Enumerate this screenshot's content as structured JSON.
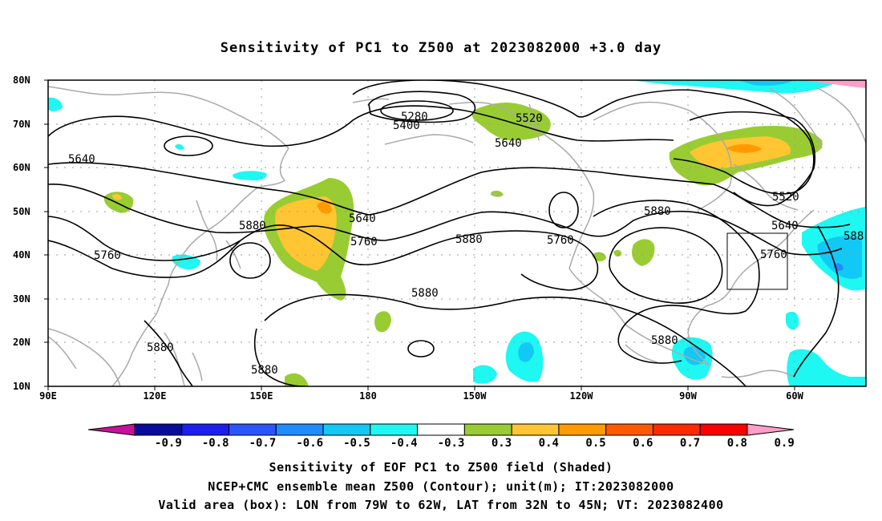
{
  "title": "Sensitivity of PC1 to Z500 at 2023082000 +3.0 day",
  "lat_labels": [
    "80N",
    "70N",
    "60N",
    "50N",
    "40N",
    "30N",
    "20N",
    "10N"
  ],
  "lon_labels": [
    "90E",
    "120E",
    "150E",
    "180",
    "150W",
    "120W",
    "90W",
    "60W"
  ],
  "contour_labels": {
    "c5280": "5280",
    "c5400": "5400",
    "c5520a": "5520",
    "c5640a": "5640",
    "c5640b": "5640",
    "c5640c": "5640",
    "c5640d": "5640",
    "c5760a": "5760",
    "c5760b": "5760",
    "c5760c": "5760",
    "c5760d": "5760",
    "c5880a": "5880",
    "c5880b": "5880",
    "c5880c": "5880",
    "c5880d": "5880",
    "c5880e": "5880",
    "c5880f": "5880",
    "c5880g": "5880",
    "c5880h": "588",
    "c5520b": "5520"
  },
  "colorbar": {
    "labels": [
      "-0.9",
      "-0.8",
      "-0.7",
      "-0.6",
      "-0.5",
      "-0.4",
      "-0.3",
      "0.3",
      "0.4",
      "0.5",
      "0.6",
      "0.7",
      "0.8",
      "0.9"
    ],
    "colors": [
      "#c8119a",
      "#0a0a9b",
      "#1d1df0",
      "#2b55ff",
      "#1f8dff",
      "#12c8f5",
      "#1ff7f2",
      "#ffffff",
      "#99cc33",
      "#ffc533",
      "#ff9a00",
      "#ff5a00",
      "#ff2a00",
      "#ff0000",
      "#ff9ec8"
    ]
  },
  "captions": {
    "line1": "Sensitivity of EOF PC1 to Z500 field (Shaded)",
    "line2": "NCEP+CMC ensemble mean Z500 (Contour); unit(m); IT:2023082000",
    "line3": "Valid area (box): LON from 79W to 62W, LAT from 32N to 45N; VT: 2023082400"
  }
}
